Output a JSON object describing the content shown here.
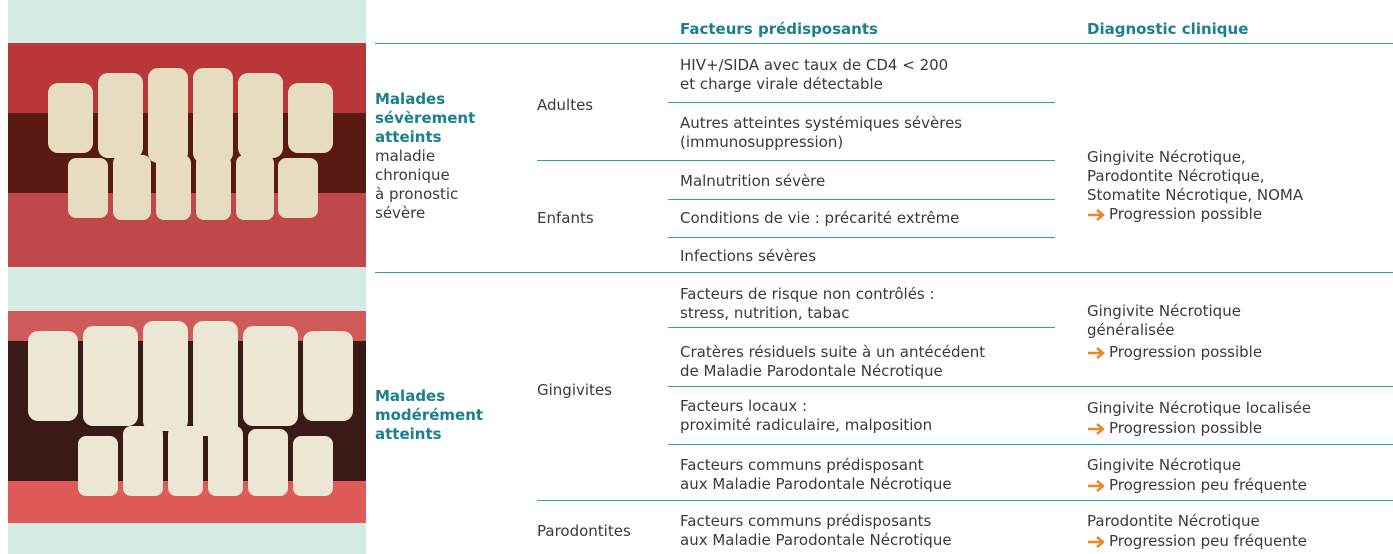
{
  "header": {
    "factors_title": "Facteurs prédisposants",
    "diagnosis_title": "Diagnostic clinique"
  },
  "groups": [
    {
      "title": "Malades\nsévèrement\natteints",
      "subtitle": "maladie\nchronique\nà pronostic\nsévère",
      "subgroups": [
        {
          "name": "Adultes",
          "factors": [
            "HIV+/SIDA avec taux de CD4 < 200\net charge virale détectable",
            "Autres atteintes systémiques sévères\n(immunosuppression)"
          ]
        },
        {
          "name": "Enfants",
          "factors": [
            "Malnutrition sévère",
            "Conditions de vie : précarité extrême",
            "Infections sévères"
          ]
        }
      ],
      "diagnoses": [
        {
          "text": "Gingivite Nécrotique,\nParodontite Nécrotique,\nStomatite Nécrotique, NOMA",
          "progression": "Progression possible"
        }
      ]
    },
    {
      "title": "Malades\nmodérément\natteints",
      "subgroups": [
        {
          "name": "Gingivites",
          "factors": [
            "Facteurs de risque non contrôlés :\nstress, nutrition, tabac",
            "Cratères résiduels suite à un antécédent\nde Maladie Parodontale Nécrotique",
            "Facteurs locaux :\nproximité radiculaire, malposition",
            "Facteurs communs prédisposant\naux Maladie Parodontale Nécrotique"
          ]
        },
        {
          "name": "Parodontites",
          "factors": [
            "Facteurs communs prédisposants\naux Maladie Parodontale Nécrotique"
          ]
        }
      ],
      "diagnoses": [
        {
          "text": "Gingivite Nécrotique\ngénéralisée",
          "progression": "Progression possible"
        },
        {
          "text": "Gingivite Nécrotique localisée",
          "progression": "Progression possible"
        },
        {
          "text": "Gingivite Nécrotique",
          "progression": "Progression peu fréquente"
        },
        {
          "text": "Parodontite Nécrotique",
          "progression": "Progression peu fréquente"
        }
      ]
    }
  ]
}
